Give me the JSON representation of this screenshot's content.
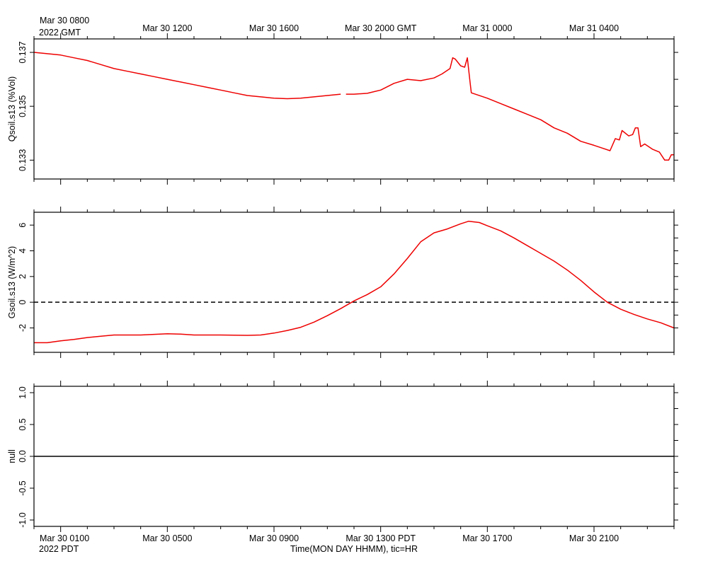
{
  "top_axis": {
    "ticks": [
      {
        "label": "Mar 30 0800",
        "time": "2022-03-30T08:00Z"
      },
      {
        "label": "Mar 30 1200",
        "time": "2022-03-30T12:00Z"
      },
      {
        "label": "Mar 30 1600",
        "time": "2022-03-30T16:00Z"
      },
      {
        "label": "Mar 30 2000 GMT",
        "time": "2022-03-30T20:00Z"
      },
      {
        "label": "Mar 31 0000",
        "time": "2022-03-31T00:00Z"
      },
      {
        "label": "Mar 31 0400",
        "time": "2022-03-31T04:00Z"
      }
    ],
    "year_label": "2022 GMT"
  },
  "bottom_axis": {
    "ticks": [
      {
        "label": "Mar 30 0100",
        "time": "2022-03-30T01:00 PDT"
      },
      {
        "label": "Mar 30 0500",
        "time": "2022-03-30T05:00 PDT"
      },
      {
        "label": "Mar 30 0900",
        "time": "2022-03-30T09:00 PDT"
      },
      {
        "label": "Mar 30 1300 PDT",
        "time": "2022-03-30T13:00 PDT"
      },
      {
        "label": "Mar 30 1700",
        "time": "2022-03-30T17:00 PDT"
      },
      {
        "label": "Mar 30 2100",
        "time": "2022-03-30T21:00 PDT"
      }
    ],
    "year_label": "2022 PDT",
    "title": "Time(MON DAY HHMM), tic=HR"
  },
  "chart_data": [
    {
      "type": "line",
      "ylabel": "Qsoil.s13 (%Vol)",
      "ylim": [
        0.1323,
        0.1375
      ],
      "yticks": [
        0.133,
        0.135,
        0.137
      ],
      "ytick_labels": [
        "0.133",
        "0.135",
        "0.137"
      ],
      "xlim_pdt": [
        "2022-03-30T00:00",
        "2022-03-31T00:00"
      ],
      "zero_line": false,
      "series": [
        {
          "color": "#ee0000",
          "segments": [
            [
              [
                0.0,
                0.137
              ],
              [
                0.5,
                0.13695
              ],
              [
                1.0,
                0.1369
              ],
              [
                1.5,
                0.1368
              ],
              [
                2.0,
                0.1367
              ],
              [
                2.5,
                0.13655
              ],
              [
                3.0,
                0.1364
              ],
              [
                3.5,
                0.1363
              ],
              [
                4.0,
                0.1362
              ],
              [
                4.5,
                0.1361
              ],
              [
                5.0,
                0.136
              ],
              [
                5.5,
                0.1359
              ],
              [
                6.0,
                0.1358
              ],
              [
                6.5,
                0.1357
              ],
              [
                7.0,
                0.1356
              ],
              [
                7.5,
                0.1355
              ],
              [
                8.0,
                0.1354
              ],
              [
                8.5,
                0.13535
              ],
              [
                9.0,
                0.1353
              ],
              [
                9.5,
                0.13528
              ],
              [
                10.0,
                0.1353
              ],
              [
                10.5,
                0.13535
              ],
              [
                11.0,
                0.1354
              ],
              [
                11.5,
                0.13545
              ]
            ],
            [
              [
                11.7,
                0.13545
              ],
              [
                12.0,
                0.13545
              ],
              [
                12.5,
                0.13548
              ],
              [
                13.0,
                0.1356
              ],
              [
                13.5,
                0.13585
              ],
              [
                14.0,
                0.136
              ],
              [
                14.5,
                0.13595
              ],
              [
                15.0,
                0.13605
              ],
              [
                15.3,
                0.1362
              ],
              [
                15.6,
                0.1364
              ],
              [
                15.7,
                0.1368
              ],
              [
                15.8,
                0.13675
              ],
              [
                16.0,
                0.1365
              ],
              [
                16.15,
                0.13645
              ],
              [
                16.25,
                0.1368
              ],
              [
                16.35,
                0.1359
              ],
              [
                16.4,
                0.1355
              ],
              [
                17.0,
                0.1353
              ],
              [
                17.5,
                0.1351
              ],
              [
                18.0,
                0.1349
              ],
              [
                18.5,
                0.1347
              ],
              [
                19.0,
                0.1345
              ],
              [
                19.5,
                0.1342
              ],
              [
                20.0,
                0.134
              ],
              [
                20.5,
                0.1337
              ],
              [
                21.0,
                0.13355
              ],
              [
                21.3,
                0.13345
              ],
              [
                21.6,
                0.13335
              ],
              [
                21.8,
                0.1338
              ],
              [
                21.95,
                0.13375
              ],
              [
                22.05,
                0.1341
              ],
              [
                22.3,
                0.1339
              ],
              [
                22.45,
                0.13395
              ],
              [
                22.55,
                0.1342
              ],
              [
                22.65,
                0.1342
              ],
              [
                22.75,
                0.1335
              ],
              [
                22.9,
                0.1336
              ],
              [
                23.2,
                0.1334
              ],
              [
                23.45,
                0.1333
              ],
              [
                23.65,
                0.133
              ],
              [
                23.8,
                0.133
              ],
              [
                23.9,
                0.1332
              ],
              [
                24.0,
                0.1332
              ]
            ]
          ]
        }
      ]
    },
    {
      "type": "line",
      "ylabel": "Gsoil.s13 (W/m^2)",
      "ylim": [
        -3.9,
        7.0
      ],
      "yticks": [
        -2,
        0,
        2,
        4,
        6
      ],
      "ytick_labels": [
        "-2",
        "0",
        "2",
        "4",
        "6"
      ],
      "xlim_pdt": [
        "2022-03-30T00:00",
        "2022-03-31T00:00"
      ],
      "zero_line": true,
      "series": [
        {
          "color": "#ee0000",
          "segments": [
            [
              [
                0.0,
                -3.15
              ],
              [
                0.5,
                -3.15
              ],
              [
                1.0,
                -3.0
              ],
              [
                1.5,
                -2.9
              ],
              [
                2.0,
                -2.75
              ],
              [
                2.5,
                -2.65
              ],
              [
                3.0,
                -2.55
              ],
              [
                4.0,
                -2.55
              ],
              [
                5.0,
                -2.45
              ],
              [
                5.5,
                -2.48
              ],
              [
                6.0,
                -2.55
              ],
              [
                7.0,
                -2.55
              ],
              [
                8.0,
                -2.58
              ],
              [
                8.5,
                -2.55
              ],
              [
                9.0,
                -2.4
              ],
              [
                9.5,
                -2.2
              ],
              [
                10.0,
                -1.95
              ],
              [
                10.5,
                -1.55
              ],
              [
                11.0,
                -1.05
              ],
              [
                11.5,
                -0.5
              ],
              [
                12.0,
                0.1
              ],
              [
                12.5,
                0.6
              ],
              [
                13.0,
                1.2
              ],
              [
                13.5,
                2.2
              ],
              [
                14.0,
                3.4
              ],
              [
                14.5,
                4.7
              ],
              [
                15.0,
                5.4
              ],
              [
                15.5,
                5.7
              ],
              [
                16.0,
                6.1
              ],
              [
                16.3,
                6.3
              ],
              [
                16.7,
                6.2
              ],
              [
                17.0,
                5.95
              ],
              [
                17.5,
                5.55
              ],
              [
                18.0,
                5.0
              ],
              [
                18.5,
                4.4
              ],
              [
                19.0,
                3.8
              ],
              [
                19.5,
                3.2
              ],
              [
                20.0,
                2.5
              ],
              [
                20.5,
                1.7
              ],
              [
                21.0,
                0.8
              ],
              [
                21.5,
                0.0
              ],
              [
                22.0,
                -0.55
              ],
              [
                22.5,
                -0.95
              ],
              [
                23.0,
                -1.3
              ],
              [
                23.5,
                -1.6
              ],
              [
                24.0,
                -2.0
              ]
            ]
          ]
        }
      ]
    },
    {
      "type": "line",
      "ylabel": "null",
      "ylim": [
        -1.1,
        1.1
      ],
      "yticks": [
        -1.0,
        -0.5,
        0.0,
        0.5,
        1.0
      ],
      "ytick_labels": [
        "-1.0",
        "-0.5",
        "0.0",
        "0.5",
        "1.0"
      ],
      "xlim_pdt": [
        "2022-03-30T00:00",
        "2022-03-31T00:00"
      ],
      "zero_line": false,
      "series": [
        {
          "color": "#000000",
          "segments": [
            [
              [
                0.0,
                0.0
              ],
              [
                24.0,
                0.0
              ]
            ]
          ]
        }
      ]
    }
  ]
}
